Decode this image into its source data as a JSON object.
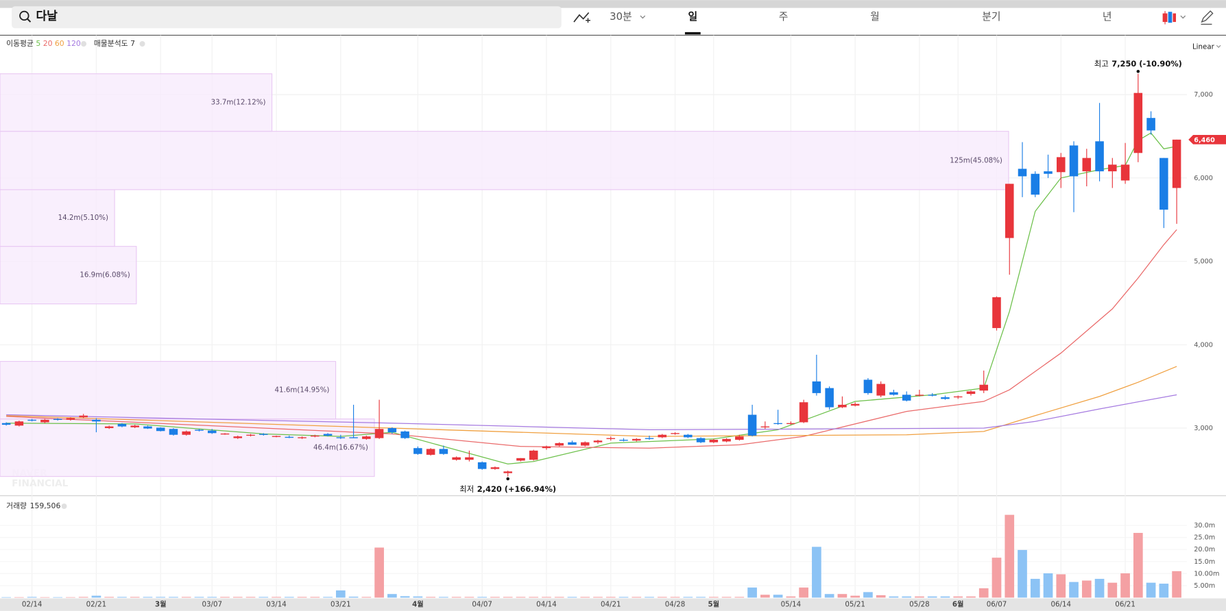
{
  "header": {
    "search": "다날"
  },
  "toolbar": {
    "items": [
      "30분",
      "일",
      "주",
      "월",
      "분기",
      "년"
    ],
    "selected": 1
  },
  "chart_data": {
    "type": "candlestick",
    "categories": [
      null,
      null,
      "02/14",
      null,
      null,
      null,
      null,
      "02/21",
      null,
      null,
      null,
      null,
      "3월",
      null,
      null,
      null,
      "03/07",
      null,
      null,
      null,
      null,
      "03/14",
      null,
      null,
      null,
      null,
      "03/21",
      null,
      null,
      null,
      null,
      null,
      "4월",
      null,
      null,
      null,
      null,
      "04/07",
      null,
      null,
      null,
      null,
      "04/14",
      null,
      null,
      null,
      null,
      "04/21",
      null,
      null,
      null,
      null,
      "04/28",
      null,
      null,
      "5월",
      null,
      null,
      null,
      null,
      null,
      "05/14",
      null,
      null,
      null,
      null,
      "05/21",
      null,
      null,
      null,
      null,
      "05/28",
      null,
      null,
      "6월",
      null,
      null,
      "06/07",
      null,
      null,
      null,
      null,
      "06/14",
      null,
      null,
      null,
      null,
      "06/21",
      null,
      null,
      null,
      null
    ],
    "open": [
      3060,
      3030,
      3100,
      3070,
      3110,
      3100,
      3130,
      3100,
      3000,
      3050,
      3010,
      3020,
      3005,
      2990,
      2920,
      2980,
      2970,
      2930,
      2880,
      2910,
      2930,
      2900,
      2895,
      2880,
      2900,
      2930,
      2890,
      2890,
      2870,
      2880,
      3000,
      2960,
      2760,
      2680,
      2750,
      2620,
      2620,
      2590,
      2510,
      2460,
      2610,
      2620,
      2760,
      2790,
      2830,
      2790,
      2830,
      2870,
      2860,
      2850,
      2880,
      2890,
      2930,
      2920,
      2880,
      2830,
      2840,
      2860,
      3160,
      3010,
      3060,
      3050,
      3070,
      3560,
      3480,
      3250,
      3270,
      3580,
      3390,
      3430,
      3400,
      3390,
      3400,
      3370,
      3370,
      3410,
      3450,
      4200,
      5280,
      6110,
      6050,
      6080,
      6070,
      6390,
      6080,
      6440,
      6080,
      5970,
      6300,
      6720,
      6240,
      5880
    ],
    "high": [
      3070,
      3090,
      3110,
      3110,
      3120,
      3130,
      3170,
      3120,
      3030,
      3060,
      3040,
      3030,
      3010,
      3000,
      2970,
      2990,
      2990,
      2940,
      2910,
      2930,
      2940,
      2910,
      2910,
      2900,
      2920,
      2940,
      2920,
      3280,
      2910,
      3340,
      3010,
      2970,
      2780,
      2760,
      2790,
      2660,
      2730,
      2600,
      2540,
      2490,
      2640,
      2740,
      2790,
      2830,
      2850,
      2840,
      2860,
      2900,
      2880,
      2880,
      2910,
      2930,
      2950,
      2930,
      2890,
      2870,
      2880,
      2920,
      3280,
      3080,
      3220,
      3080,
      3340,
      3880,
      3500,
      3380,
      3310,
      3600,
      3560,
      3460,
      3440,
      3460,
      3420,
      3390,
      3390,
      3450,
      3690,
      4580,
      5930,
      6430,
      6080,
      6280,
      6300,
      6440,
      6350,
      6900,
      6240,
      6420,
      7250,
      6800,
      6240,
      6460
    ],
    "low": [
      3030,
      3020,
      3080,
      3060,
      3090,
      3090,
      3120,
      2950,
      2990,
      3010,
      3000,
      2990,
      2960,
      2910,
      2910,
      2960,
      2930,
      2920,
      2870,
      2900,
      2910,
      2890,
      2880,
      2870,
      2890,
      2900,
      2870,
      2880,
      2860,
      2870,
      2930,
      2870,
      2680,
      2670,
      2680,
      2610,
      2600,
      2500,
      2500,
      2420,
      2600,
      2610,
      2740,
      2780,
      2800,
      2780,
      2810,
      2850,
      2840,
      2840,
      2860,
      2880,
      2920,
      2880,
      2820,
      2820,
      2830,
      2850,
      2900,
      2990,
      3040,
      3040,
      3060,
      3390,
      3220,
      3240,
      3260,
      3400,
      3370,
      3390,
      3320,
      3380,
      3380,
      3340,
      3350,
      3390,
      3420,
      4170,
      4840,
      5770,
      5770,
      6000,
      5880,
      5590,
      5900,
      5960,
      5880,
      5930,
      6190,
      6520,
      5400,
      5450
    ],
    "close": [
      3040,
      3080,
      3090,
      3100,
      3100,
      3120,
      3150,
      3080,
      3020,
      3020,
      3030,
      2995,
      2965,
      2920,
      2960,
      2970,
      2940,
      2935,
      2900,
      2920,
      2920,
      2905,
      2885,
      2890,
      2910,
      2910,
      2885,
      2880,
      2900,
      2990,
      2950,
      2880,
      2690,
      2750,
      2690,
      2650,
      2650,
      2510,
      2530,
      2480,
      2640,
      2730,
      2780,
      2820,
      2800,
      2830,
      2850,
      2880,
      2850,
      2870,
      2870,
      2920,
      2940,
      2890,
      2830,
      2860,
      2870,
      2900,
      2910,
      3020,
      3050,
      3060,
      3310,
      3420,
      3250,
      3280,
      3290,
      3420,
      3530,
      3400,
      3330,
      3400,
      3390,
      3350,
      3380,
      3440,
      3520,
      4570,
      5930,
      6020,
      5800,
      6050,
      6250,
      6020,
      6240,
      6080,
      6160,
      6160,
      7020,
      6570,
      5620,
      6460
    ],
    "up_color": "#e8353b",
    "down_color": "#1a7ee6",
    "ylim": [
      2194,
      7712
    ],
    "yticks": [
      {
        "value": 3000,
        "label": "3,000"
      },
      {
        "value": 4000,
        "label": "4,000"
      },
      {
        "value": 5000,
        "label": "5,000"
      },
      {
        "value": 6000,
        "label": "6,000"
      },
      {
        "value": 7000,
        "label": "7,000"
      }
    ],
    "grid": true,
    "scale_label": "Linear",
    "ma_label": "이동평균",
    "series": [
      {
        "name": "5",
        "color": "#6cc04a",
        "x": [
          0,
          10,
          20,
          26,
          30,
          34,
          39,
          41,
          47,
          55,
          60,
          63,
          66,
          72,
          76,
          78,
          80,
          82,
          85,
          87,
          88,
          89,
          90,
          91
        ],
        "values": [
          3060,
          3050,
          2930,
          2900,
          2950,
          2780,
          2570,
          2600,
          2820,
          2870,
          2980,
          3150,
          3320,
          3400,
          3480,
          4400,
          5600,
          6000,
          6100,
          6150,
          6450,
          6540,
          6350,
          6380
        ]
      },
      {
        "name": "20",
        "color": "#ea6a6a",
        "x": [
          0,
          20,
          30,
          40,
          50,
          57,
          62,
          70,
          76,
          78,
          82,
          86,
          88,
          90,
          91
        ],
        "values": [
          3140,
          3000,
          2930,
          2780,
          2760,
          2800,
          2900,
          3200,
          3320,
          3460,
          3900,
          4430,
          4800,
          5200,
          5380
        ]
      },
      {
        "name": "60",
        "color": "#f0a040",
        "x": [
          0,
          30,
          50,
          70,
          76,
          80,
          85,
          88,
          91
        ],
        "values": [
          3150,
          3000,
          2900,
          2920,
          2960,
          3150,
          3380,
          3550,
          3740
        ]
      },
      {
        "name": "120",
        "color": "#a57ae0",
        "x": [
          0,
          30,
          50,
          76,
          80,
          85,
          91
        ],
        "values": [
          3160,
          3060,
          2980,
          3000,
          3080,
          3230,
          3400
        ]
      }
    ],
    "profile": {
      "name": "매물분석도 7",
      "bins": [
        2420,
        3110,
        3800,
        4490,
        5180,
        5860,
        6560,
        7250
      ],
      "values": [
        46.4,
        41.6,
        0,
        16.9,
        14.2,
        125,
        33.7
      ],
      "value_labels": [
        "46.4m(16.67%)",
        "41.6m(14.95%)",
        null,
        "16.9m(6.08%)",
        "14.2m(5.10%)",
        "125m(45.08%)",
        "33.7m(12.12%)"
      ],
      "color": "#f8ebfc"
    },
    "high_note": {
      "label": "최고",
      "value": 7250,
      "value_label": "7,250 (-10.90%)"
    },
    "low_note": {
      "label": "최저",
      "value": 2420,
      "value_label": "2,420 (+166.94%)"
    },
    "last_price": {
      "value": 6460,
      "label": "6,460"
    },
    "volume": {
      "title": "거래량",
      "last": {
        "value": 159506,
        "label": "159,506"
      },
      "values": [
        0.2,
        0.2,
        0.3,
        0.2,
        0.2,
        0.2,
        0.3,
        0.8,
        0.3,
        0.3,
        0.3,
        0.3,
        0.3,
        0.3,
        0.3,
        0.3,
        0.3,
        0.3,
        0.3,
        0.3,
        0.3,
        0.3,
        0.3,
        0.3,
        0.3,
        0.3,
        3.0,
        0.4,
        0.3,
        20.8,
        1.5,
        0.6,
        0.5,
        0.3,
        0.3,
        0.3,
        0.3,
        0.3,
        0.3,
        0.3,
        0.3,
        0.3,
        0.3,
        0.3,
        0.3,
        0.3,
        0.3,
        0.3,
        0.3,
        0.3,
        0.3,
        0.3,
        0.3,
        0.3,
        0.3,
        0.3,
        0.3,
        0.3,
        4.2,
        1.2,
        1.2,
        0.5,
        4.2,
        21.1,
        1.5,
        1.5,
        0.8,
        2.3,
        1.0,
        0.5,
        0.5,
        0.5,
        0.5,
        0.5,
        0.5,
        0.5,
        3.9,
        16.6,
        34.4,
        19.8,
        7.8,
        10.1,
        9.7,
        6.5,
        7.1,
        7.8,
        6.2,
        10.1,
        26.9,
        6.2,
        5.8,
        11.0
      ],
      "ylim": [
        0,
        35.7
      ],
      "yticks": [
        {
          "value": 5,
          "label": "5.00m"
        },
        {
          "value": 10,
          "label": "10.00m"
        },
        {
          "value": 15,
          "label": "15.0m"
        },
        {
          "value": 20,
          "label": "20.0m"
        },
        {
          "value": 25,
          "label": "25.0m"
        },
        {
          "value": 30,
          "label": "30.0m"
        }
      ],
      "up_color": "#f4a0a3",
      "down_color": "#8cc3f5"
    },
    "watermark": [
      "NAVER",
      "FINANCIAL"
    ]
  }
}
